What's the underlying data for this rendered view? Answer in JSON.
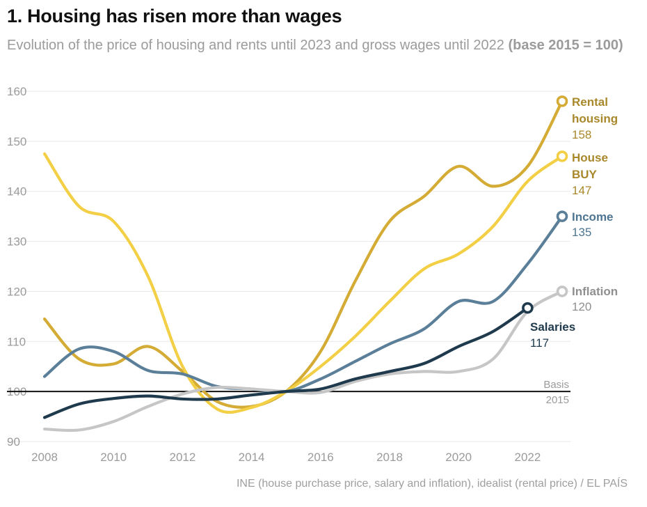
{
  "header": {
    "title": "1. Housing has risen more than wages",
    "subtitle": "Evolution of the price of housing and rents until 2023 and gross wages until 2022",
    "subtitle_bold": "(base 2015 = 100)"
  },
  "source": "INE (house purchase price, salary and inflation), idealist (rental price) / EL PAÍS",
  "chart_data": {
    "type": "line",
    "title": "1. Housing has risen more than wages",
    "xlim": [
      2008,
      2023
    ],
    "ylim": [
      90,
      160
    ],
    "x_ticks": [
      "2008",
      "2010",
      "2012",
      "2014",
      "2016",
      "2018",
      "2020",
      "2022"
    ],
    "y_ticks": [
      "160",
      "150",
      "140",
      "130",
      "120",
      "110",
      "100",
      "90"
    ],
    "grid": true,
    "baseline": {
      "value": 100,
      "label_1": "Basis",
      "label_2": "2015"
    },
    "series": [
      {
        "key": "rental",
        "name_1": "Rental",
        "name_2": "housing",
        "end_value": "158",
        "color": "#d4ab34",
        "name_color": "#a8882a",
        "x": [
          2008,
          2009,
          2010,
          2011,
          2012,
          2013,
          2014,
          2015,
          2016,
          2017,
          2018,
          2019,
          2020,
          2021,
          2022,
          2023
        ],
        "y": [
          114.5,
          106.5,
          105.5,
          109,
          104,
          98,
          97,
          100,
          108,
          122,
          134,
          139,
          145,
          141,
          145,
          158
        ]
      },
      {
        "key": "house",
        "name_1": "House",
        "name_2": "BUY",
        "end_value": "147",
        "color": "#f3cf45",
        "name_color": "#a8882a",
        "x": [
          2008,
          2009,
          2010,
          2011,
          2012,
          2013,
          2014,
          2015,
          2016,
          2017,
          2018,
          2019,
          2020,
          2021,
          2022,
          2023
        ],
        "y": [
          147.5,
          137,
          134,
          123,
          105,
          96.5,
          96.8,
          100,
          105,
          111,
          118,
          124.5,
          127.5,
          133,
          142,
          147
        ]
      },
      {
        "key": "income",
        "name_1": "Income",
        "name_2": "",
        "end_value": "135",
        "color": "#5b7f99",
        "name_color": "#4e7591",
        "x": [
          2008,
          2009,
          2010,
          2011,
          2012,
          2013,
          2014,
          2015,
          2016,
          2017,
          2018,
          2019,
          2020,
          2021,
          2022,
          2023
        ],
        "y": [
          103,
          108.5,
          108,
          104.2,
          103.5,
          101,
          100.5,
          100,
          102.5,
          106,
          109.5,
          112.5,
          118,
          118,
          125.5,
          135
        ]
      },
      {
        "key": "inflation",
        "name_1": "Inflation",
        "name_2": "",
        "end_value": "120",
        "color": "#c6c6c6",
        "name_color": "#8f8f8f",
        "x": [
          2008,
          2009,
          2010,
          2011,
          2012,
          2013,
          2014,
          2015,
          2016,
          2017,
          2018,
          2019,
          2020,
          2021,
          2022,
          2023
        ],
        "y": [
          92.5,
          92.3,
          94,
          97,
          99.5,
          100.8,
          100.5,
          100,
          99.8,
          102,
          103.5,
          104,
          104,
          106.5,
          116,
          120
        ]
      },
      {
        "key": "salaries",
        "name_1": "Salaries",
        "name_2": "",
        "end_value": "117",
        "color": "#1f3a4d",
        "name_color": "#1f3a4d",
        "x": [
          2008,
          2009,
          2010,
          2011,
          2012,
          2013,
          2014,
          2015,
          2016,
          2017,
          2018,
          2019,
          2020,
          2021,
          2022
        ],
        "y": [
          94.8,
          97.5,
          98.6,
          99.1,
          98.5,
          98.5,
          99.3,
          100,
          100.5,
          102.5,
          104,
          105.6,
          109,
          112,
          116.7
        ]
      }
    ]
  }
}
